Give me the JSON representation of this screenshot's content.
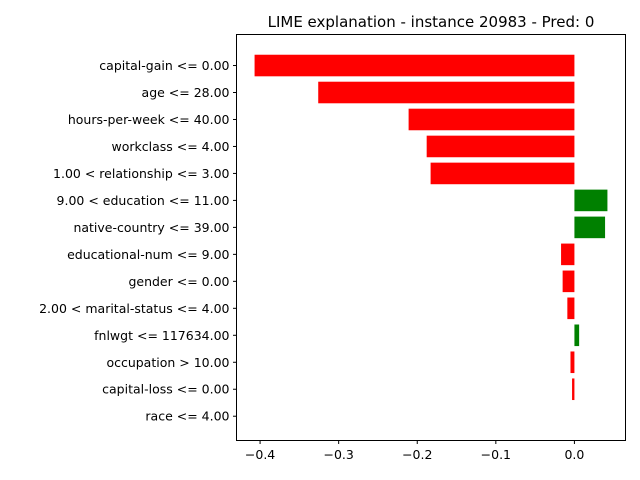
{
  "chart_data": {
    "type": "bar",
    "orientation": "horizontal",
    "title": "LIME explanation - instance 20983 - Pred: 0",
    "xlabel": "",
    "ylabel": "",
    "xlim": [
      -0.43,
      0.065
    ],
    "xticks": [
      -0.4,
      -0.3,
      -0.2,
      -0.1,
      0.0
    ],
    "xtick_labels": [
      "−0.4",
      "−0.3",
      "−0.2",
      "−0.1",
      "0.0"
    ],
    "grid": false,
    "categories": [
      "capital-gain <= 0.00",
      "age <= 28.00",
      "hours-per-week <= 40.00",
      "workclass <= 4.00",
      "1.00 < relationship <= 3.00",
      "9.00 < education <= 11.00",
      "native-country <= 39.00",
      "educational-num <= 9.00",
      "gender <= 0.00",
      "2.00 < marital-status <= 4.00",
      "fnlwgt <= 117634.00",
      "occupation > 10.00",
      "capital-loss <= 0.00",
      "race <= 4.00"
    ],
    "values": [
      -0.407,
      -0.326,
      -0.211,
      -0.188,
      -0.183,
      0.042,
      0.039,
      -0.017,
      -0.015,
      -0.009,
      0.006,
      -0.005,
      -0.003,
      0.0
    ],
    "colors": {
      "positive": "#008000",
      "negative": "#ff0000"
    }
  }
}
